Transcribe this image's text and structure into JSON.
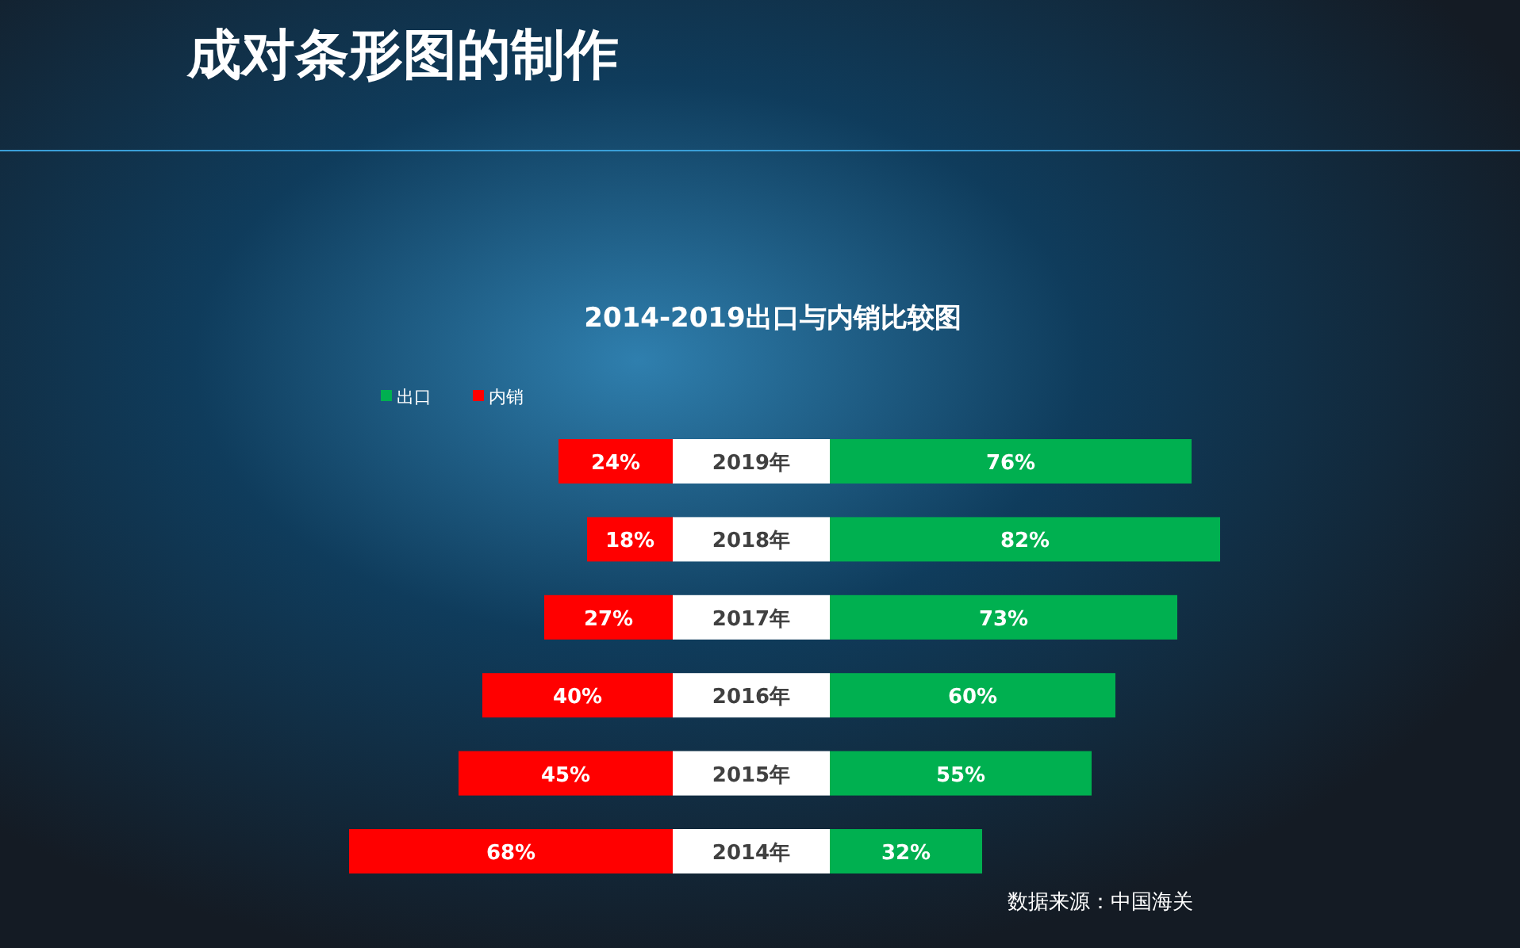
{
  "chart_data": [
    {
      "type": "bar",
      "orientation": "horizontal",
      "title": "成对条形图的制作",
      "subtitle": "2014-2019出口与内销比较图",
      "categories": [
        "2019年",
        "2018年",
        "2017年",
        "2016年",
        "2015年",
        "2014年"
      ],
      "xlim": [
        68,
        0
      ],
      "series": [
        {
          "name": "内销",
          "color": "#ff0000",
          "values": [
            24,
            18,
            27,
            40,
            45,
            68
          ],
          "value_labels": [
            "24%",
            "18%",
            "27%",
            "40%",
            "45%",
            "68%"
          ]
        }
      ],
      "legend": "top left"
    },
    {
      "type": "bar",
      "orientation": "horizontal",
      "categories": [
        null,
        null,
        null,
        null,
        null,
        null
      ],
      "tick_labels": false,
      "xlim": [
        0,
        82
      ],
      "series": [
        {
          "name": "出口",
          "color": "#00b050",
          "values": [
            76,
            82,
            73,
            60,
            55,
            32
          ],
          "value_labels": [
            "76%",
            "82%",
            "73%",
            "60%",
            "55%",
            "32%"
          ]
        }
      ],
      "legend": "top left",
      "annotations": [
        "数据来源：中国海关"
      ]
    }
  ]
}
